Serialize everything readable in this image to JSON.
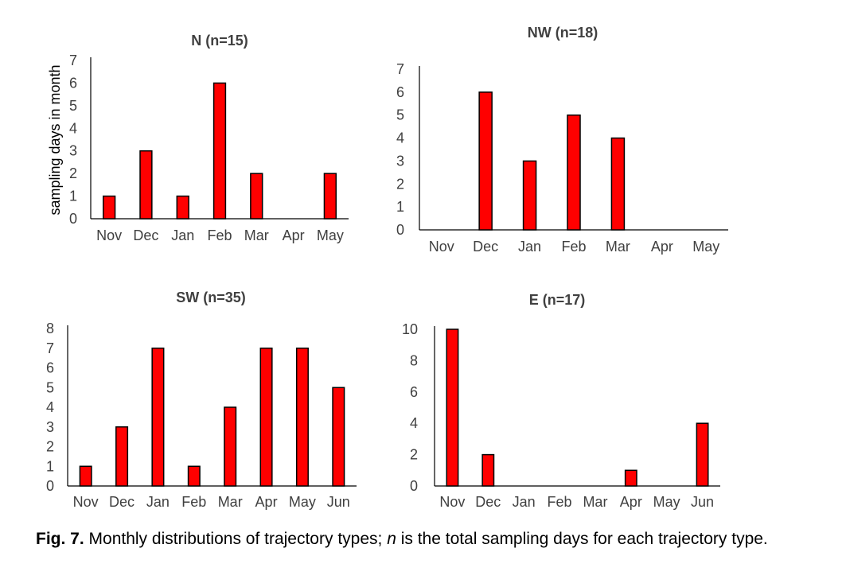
{
  "chart_data": [
    {
      "type": "bar",
      "title": "N (n=15)",
      "ylabel": "sampling days in month",
      "xlabel": "",
      "categories": [
        "Nov",
        "Dec",
        "Jan",
        "Feb",
        "Mar",
        "Apr",
        "May"
      ],
      "values": [
        1,
        3,
        1,
        6,
        2,
        0,
        2
      ],
      "ylim": [
        0,
        7
      ],
      "yticks": [
        0,
        1,
        2,
        3,
        4,
        5,
        6,
        7
      ],
      "grid": false,
      "bar_color": "#ff0000",
      "bar_edge_color": "#000000"
    },
    {
      "type": "bar",
      "title": "NW (n=18)",
      "ylabel": "",
      "xlabel": "",
      "categories": [
        "Nov",
        "Dec",
        "Jan",
        "Feb",
        "Mar",
        "Apr",
        "May"
      ],
      "values": [
        0,
        6,
        3,
        5,
        4,
        0,
        0
      ],
      "ylim": [
        0,
        7
      ],
      "yticks": [
        0,
        1,
        2,
        3,
        4,
        5,
        6,
        7
      ],
      "grid": false,
      "bar_color": "#ff0000",
      "bar_edge_color": "#000000"
    },
    {
      "type": "bar",
      "title": "SW (n=35)",
      "ylabel": "",
      "xlabel": "",
      "categories": [
        "Nov",
        "Dec",
        "Jan",
        "Feb",
        "Mar",
        "Apr",
        "May",
        "Jun"
      ],
      "values": [
        1,
        3,
        7,
        1,
        4,
        7,
        7,
        5
      ],
      "ylim": [
        0,
        8
      ],
      "yticks": [
        0,
        1,
        2,
        3,
        4,
        5,
        6,
        7,
        8
      ],
      "grid": false,
      "bar_color": "#ff0000",
      "bar_edge_color": "#000000"
    },
    {
      "type": "bar",
      "title": "E (n=17)",
      "ylabel": "",
      "xlabel": "",
      "categories": [
        "Nov",
        "Dec",
        "Jan",
        "Feb",
        "Mar",
        "Apr",
        "May",
        "Jun"
      ],
      "values": [
        10,
        2,
        0,
        0,
        0,
        1,
        0,
        4
      ],
      "ylim": [
        0,
        10
      ],
      "yticks": [
        0,
        2,
        4,
        6,
        8,
        10
      ],
      "grid": false,
      "bar_color": "#ff0000",
      "bar_edge_color": "#000000"
    }
  ],
  "caption": {
    "label": "Fig. 7.",
    "text_before": " Monthly distributions of trajectory types; ",
    "italic": "n",
    "text_after": " is the total sampling days for each trajectory type."
  }
}
